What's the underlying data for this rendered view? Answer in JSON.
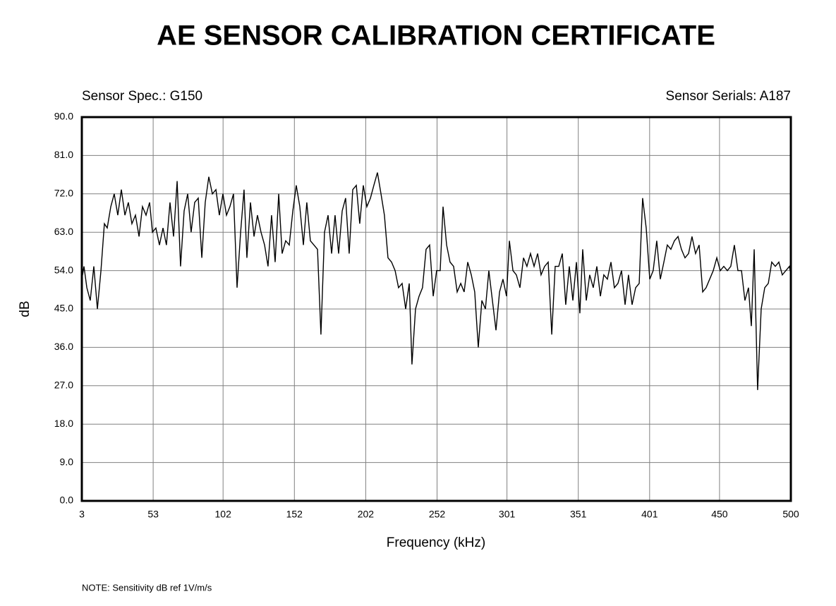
{
  "chart_data": {
    "type": "line",
    "title": "AE SENSOR CALIBRATION CERTIFICATE",
    "sensor_spec": "Sensor Spec.: G150",
    "sensor_serials": "Sensor Serials: A187",
    "xlabel": "Frequency (kHz)",
    "ylabel": "dB",
    "note": "NOTE:  Sensitivity dB ref 1V/m/s",
    "color": "#000000",
    "grid": true,
    "xlim": [
      3,
      500
    ],
    "ylim": [
      0,
      90
    ],
    "xticks": [
      3,
      53,
      102,
      152,
      202,
      252,
      301,
      351,
      401,
      450,
      500
    ],
    "yticks": [
      {
        "value": 0,
        "label": "0.0"
      },
      {
        "value": 9,
        "label": "9.0"
      },
      {
        "value": 18,
        "label": "18.0"
      },
      {
        "value": 27,
        "label": "27.0"
      },
      {
        "value": 36,
        "label": "36.0"
      },
      {
        "value": 45,
        "label": "45.0"
      },
      {
        "value": 54,
        "label": "54.0"
      },
      {
        "value": 63,
        "label": "63.0"
      },
      {
        "value": 72,
        "label": "72.0"
      },
      {
        "value": 81,
        "label": "81.0"
      },
      {
        "value": 90,
        "label": "90.0"
      }
    ],
    "x": [
      3,
      4.5,
      6.5,
      8.9,
      11.4,
      13.9,
      16.4,
      18.8,
      20.8,
      23.3,
      25.7,
      28.2,
      30.7,
      33.2,
      35.6,
      38.1,
      40.6,
      43.1,
      45.5,
      48.0,
      50.5,
      52.5,
      54.9,
      57.4,
      59.9,
      62.3,
      64.8,
      67.3,
      69.8,
      72.2,
      74.7,
      77.2,
      79.6,
      82.1,
      84.6,
      87.1,
      89.5,
      92.0,
      94.5,
      97.0,
      99.4,
      101.9,
      104.4,
      106.8,
      109.3,
      111.8,
      114.3,
      116.7,
      118.7,
      121.2,
      123.7,
      126.1,
      128.6,
      131.1,
      133.5,
      136.0,
      138.5,
      141.0,
      143.4,
      145.9,
      148.4,
      150.9,
      153.3,
      155.8,
      158.3,
      160.7,
      163.2,
      165.7,
      168.2,
      170.6,
      173.1,
      175.6,
      178.1,
      180.5,
      183.0,
      185.5,
      187.9,
      190.4,
      192.9,
      195.4,
      197.8,
      200.3,
      202.8,
      205.3,
      207.7,
      210.2,
      212.7,
      215.1,
      217.6,
      220.1,
      222.6,
      225.0,
      227.5,
      230.0,
      232.5,
      234.4,
      236.9,
      239.4,
      241.8,
      244.3,
      246.8,
      249.3,
      251.7,
      254.2,
      256.2,
      258.7,
      261.1,
      263.6,
      266.1,
      268.6,
      271.0,
      273.5,
      276.0,
      278.4,
      280.9,
      283.4,
      285.9,
      288.3,
      290.8,
      293.3,
      295.8,
      298.2,
      300.7,
      302.7,
      305.2,
      307.6,
      310.1,
      312.6,
      315.0,
      317.5,
      320.0,
      322.5,
      324.9,
      327.4,
      329.9,
      332.4,
      334.8,
      337.3,
      339.8,
      342.2,
      344.7,
      347.2,
      349.7,
      352.1,
      354.1,
      356.6,
      359.0,
      361.5,
      364.0,
      366.5,
      368.9,
      371.4,
      373.9,
      376.3,
      378.8,
      381.3,
      383.8,
      386.2,
      388.7,
      391.2,
      393.7,
      396.1,
      398.6,
      401.1,
      403.5,
      406.0,
      408.5,
      411.0,
      413.4,
      415.9,
      418.4,
      420.9,
      423.3,
      425.8,
      428.3,
      430.7,
      433.2,
      435.7,
      438.2,
      440.6,
      443.1,
      445.6,
      448.1,
      450.5,
      453.0,
      455.5,
      457.9,
      460.4,
      462.9,
      465.4,
      467.8,
      470.3,
      472.3,
      474.3,
      476.7,
      479.2,
      481.7,
      484.2,
      486.6,
      489.1,
      491.6,
      494.0,
      496.5,
      499.0,
      500
    ],
    "values": [
      52,
      55,
      50,
      47,
      55,
      45,
      54,
      65,
      64,
      69,
      72,
      67,
      73,
      67,
      70,
      65,
      67,
      62,
      69,
      67,
      70,
      63,
      64,
      60,
      64,
      60,
      70,
      62,
      75,
      55,
      68,
      72,
      63,
      70,
      71,
      57,
      70,
      76,
      72,
      73,
      67,
      72,
      67,
      69,
      72,
      50,
      63,
      73,
      57,
      70,
      62,
      67,
      63,
      60,
      55,
      67,
      56,
      72,
      58,
      61,
      60,
      68,
      74,
      69,
      60,
      70,
      61,
      60,
      59,
      39,
      63,
      67,
      58,
      67,
      58,
      68,
      71,
      58,
      73,
      74,
      65,
      74,
      69,
      71,
      74,
      77,
      72,
      67,
      57,
      56,
      54,
      50,
      51,
      45,
      51,
      32,
      45,
      48,
      50,
      59,
      60,
      48,
      54,
      54,
      69,
      60,
      56,
      55,
      49,
      51,
      49,
      56,
      53,
      49,
      36,
      47,
      45,
      54,
      47,
      40,
      49,
      52,
      48,
      61,
      54,
      53,
      50,
      57,
      55,
      58,
      55,
      58,
      53,
      55,
      56,
      39,
      55,
      55,
      58,
      46,
      55,
      47,
      56,
      44,
      59,
      47,
      53,
      50,
      55,
      48,
      53,
      52,
      56,
      50,
      51,
      54,
      46,
      53,
      46,
      50,
      51,
      71,
      64,
      52,
      54,
      61,
      52,
      56,
      60,
      59,
      61,
      62,
      59,
      57,
      58,
      62,
      58,
      60,
      49,
      50,
      52,
      54,
      57,
      54,
      55,
      54,
      55,
      60,
      54,
      54,
      47,
      50,
      41,
      59,
      26,
      45,
      50,
      51,
      56,
      55,
      56,
      53,
      54,
      55,
      53
    ]
  }
}
